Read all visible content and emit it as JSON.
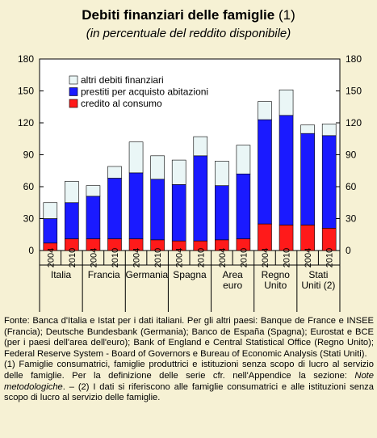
{
  "header": {
    "title": "Debiti finanziari delle famiglie",
    "title_note": "(1)",
    "subtitle": "(in percentuale del reddito disponibile)"
  },
  "chart_data": {
    "type": "bar",
    "stacked": true,
    "ylim": [
      0,
      180
    ],
    "yticks": [
      0,
      30,
      60,
      90,
      120,
      150,
      180
    ],
    "grid": false,
    "legend_position": "top-left",
    "groups": [
      {
        "label": [
          "Italia"
        ],
        "years": [
          "2004",
          "2010"
        ]
      },
      {
        "label": [
          "Francia"
        ],
        "years": [
          "2004",
          "2010"
        ]
      },
      {
        "label": [
          "Germania"
        ],
        "years": [
          "2004",
          "2010"
        ]
      },
      {
        "label": [
          "Spagna"
        ],
        "years": [
          "2004",
          "2010"
        ]
      },
      {
        "label": [
          "Area",
          "euro"
        ],
        "years": [
          "2004",
          "2010"
        ]
      },
      {
        "label": [
          "Regno",
          "Unito"
        ],
        "years": [
          "2004",
          "2010"
        ]
      },
      {
        "label": [
          "Stati",
          "Uniti (2)"
        ],
        "years": [
          "2004",
          "2010"
        ]
      }
    ],
    "series": [
      {
        "name": "credito al consumo",
        "color": "#ff1a1a",
        "values": [
          7,
          11,
          11,
          11,
          11,
          10,
          9,
          9,
          10,
          11,
          25,
          24,
          24,
          21
        ]
      },
      {
        "name": "prestiti per acquisto abitazioni",
        "color": "#1a1aff",
        "values": [
          23,
          34,
          40,
          57,
          62,
          57,
          53,
          80,
          51,
          61,
          98,
          103,
          86,
          87
        ]
      },
      {
        "name": "altri debiti finanziari",
        "color": "#eaf6f6",
        "values": [
          15,
          20,
          10,
          11,
          29,
          22,
          23,
          18,
          23,
          27,
          17,
          24,
          8,
          11
        ]
      }
    ]
  },
  "footer": {
    "source": "Fonte: Banca d'Italia e Istat per i dati italiani. Per gli altri paesi: Banque de France e INSEE (Francia); Deutsche Bundesbank (Germania); Banco de España (Spagna); Eurostat e BCE (per i paesi dell'area dell'euro); Bank of England e Central Statistical Office (Regno Unito); Federal Reserve System - Board of Governors e Bureau of Economic Analysis (Stati Uniti).",
    "note_prefix": "(1) Famiglie consumatrici, famiglie produttrici e istituzioni senza scopo di lucro al servizio delle famiglie. Per la definizione delle serie cfr. nell'Appendice la sezione:",
    "note_italic": "Note metodologiche",
    "note_suffix": ". – (2) I dati si riferiscono alle famiglie consumatrici e alle istituzioni senza scopo di lucro al servizio delle famiglie."
  }
}
